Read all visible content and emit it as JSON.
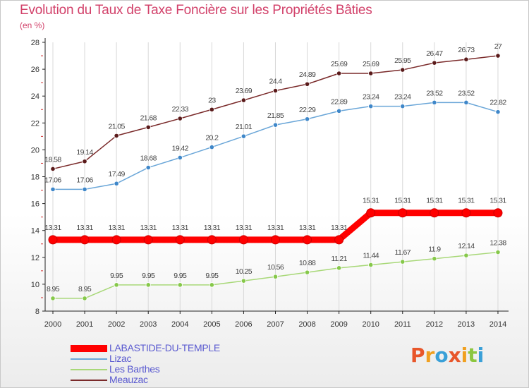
{
  "chart_data": {
    "type": "line",
    "title": "Evolution du Taux de Taxe Foncière sur les Propriétés Bâties",
    "unit_label": "(en %)",
    "xlabel": "",
    "ylabel": "",
    "ylim": [
      8,
      28
    ],
    "yticks": [
      "8",
      "10",
      "12",
      "14",
      "16",
      "18",
      "20",
      "22",
      "24",
      "26",
      "28"
    ],
    "categories": [
      "2000",
      "2001",
      "2002",
      "2003",
      "2004",
      "2005",
      "2006",
      "2007",
      "2008",
      "2009",
      "2010",
      "2011",
      "2012",
      "2013",
      "2014"
    ],
    "series": [
      {
        "name": "LABASTIDE-DU-TEMPLE",
        "color": "#ff0000",
        "marker_color": "#ff0000",
        "values": [
          13.31,
          13.31,
          13.31,
          13.31,
          13.31,
          13.31,
          13.31,
          13.31,
          13.31,
          13.31,
          15.31,
          15.31,
          15.31,
          15.31,
          15.31
        ],
        "labels": [
          "13.31",
          "13.31",
          "13.31",
          "13.31",
          "13.31",
          "13.31",
          "13.31",
          "13.31",
          "13.31",
          "13.31",
          "15.31",
          "15.31",
          "15.31",
          "15.31",
          "15.31"
        ]
      },
      {
        "name": "Lizac",
        "color": "#6aa6d8",
        "marker_color": "#3f87c9",
        "values": [
          17.06,
          17.06,
          17.49,
          18.68,
          19.42,
          20.2,
          21.01,
          21.85,
          22.29,
          22.89,
          23.24,
          23.24,
          23.52,
          23.52,
          22.82
        ],
        "labels": [
          "17.06",
          "17.06",
          "17.49",
          "18.68",
          "19.42",
          "20.2",
          "21.01",
          "21.85",
          "22.29",
          "22.89",
          "23.24",
          "23.24",
          "23.52",
          "23.52",
          "22.82"
        ]
      },
      {
        "name": "Les Barthes",
        "color": "#a8d878",
        "marker_color": "#86c84a",
        "values": [
          8.95,
          8.95,
          9.95,
          9.95,
          9.95,
          9.95,
          10.25,
          10.56,
          10.88,
          11.21,
          11.44,
          11.67,
          11.9,
          12.14,
          12.38
        ],
        "labels": [
          "8.95",
          "8.95",
          "9.95",
          "9.95",
          "9.95",
          "9.95",
          "10.25",
          "10.56",
          "10.88",
          "11.21",
          "11.44",
          "11.67",
          "11.9",
          "12.14",
          "12.38"
        ]
      },
      {
        "name": "Meauzac",
        "color": "#7a2a2a",
        "marker_color": "#5a1a1a",
        "values": [
          18.58,
          19.14,
          21.05,
          21.68,
          22.33,
          23,
          23.69,
          24.4,
          24.89,
          25.69,
          25.69,
          25.95,
          26.47,
          26.73,
          27
        ],
        "labels": [
          "18.58",
          "19.14",
          "21.05",
          "21.68",
          "22.33",
          "23",
          "23.69",
          "24.4",
          "24.89",
          "25.69",
          "25.69",
          "25.95",
          "26.47",
          "26.73",
          "27"
        ]
      }
    ],
    "legend_position": "bottom-left",
    "grid": "vertical"
  },
  "logo": {
    "letters": [
      "P",
      "r",
      "o",
      "x",
      "i",
      "t",
      "i"
    ],
    "colors": [
      "#e8562a",
      "#f0a020",
      "#3aa0d8",
      "#e8562a",
      "#f0a020",
      "#8cc63f",
      "#3aa0d8"
    ]
  }
}
